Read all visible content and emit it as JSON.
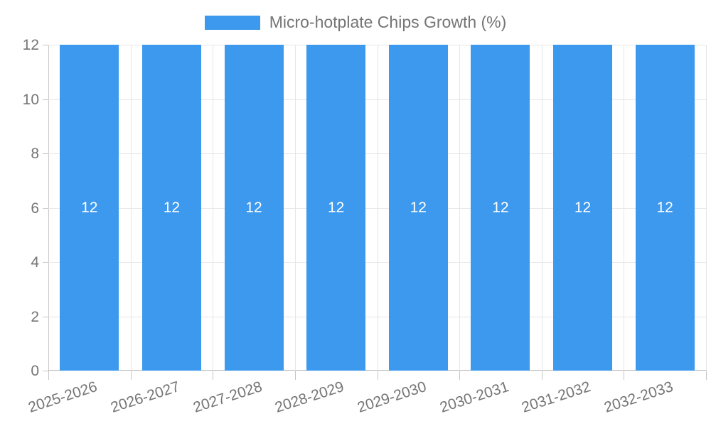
{
  "chart_data": {
    "type": "bar",
    "title": "Micro-hotplate Chips Growth (%)",
    "series_name": "Micro-hotplate Chips Growth (%)",
    "categories": [
      "2025-2026",
      "2026-2027",
      "2027-2028",
      "2028-2029",
      "2029-2030",
      "2030-2031",
      "2031-2032",
      "2032-2033"
    ],
    "values": [
      12,
      12,
      12,
      12,
      12,
      12,
      12,
      12
    ],
    "data_labels": [
      "12",
      "12",
      "12",
      "12",
      "12",
      "12",
      "12",
      "12"
    ],
    "xlabel": "",
    "ylabel": "",
    "ylim": [
      0,
      12
    ],
    "y_ticks": [
      0,
      2,
      4,
      6,
      8,
      10,
      12
    ],
    "grid": "on",
    "legend_position": "top-center",
    "colors": {
      "bar": "#3d99ee",
      "grid": "#e6e6e6",
      "axis": "#c6c6c6",
      "baseline": "#b9b9b9",
      "text": "#757575",
      "bar_label": "#ffffff",
      "background": "#ffffff"
    }
  }
}
